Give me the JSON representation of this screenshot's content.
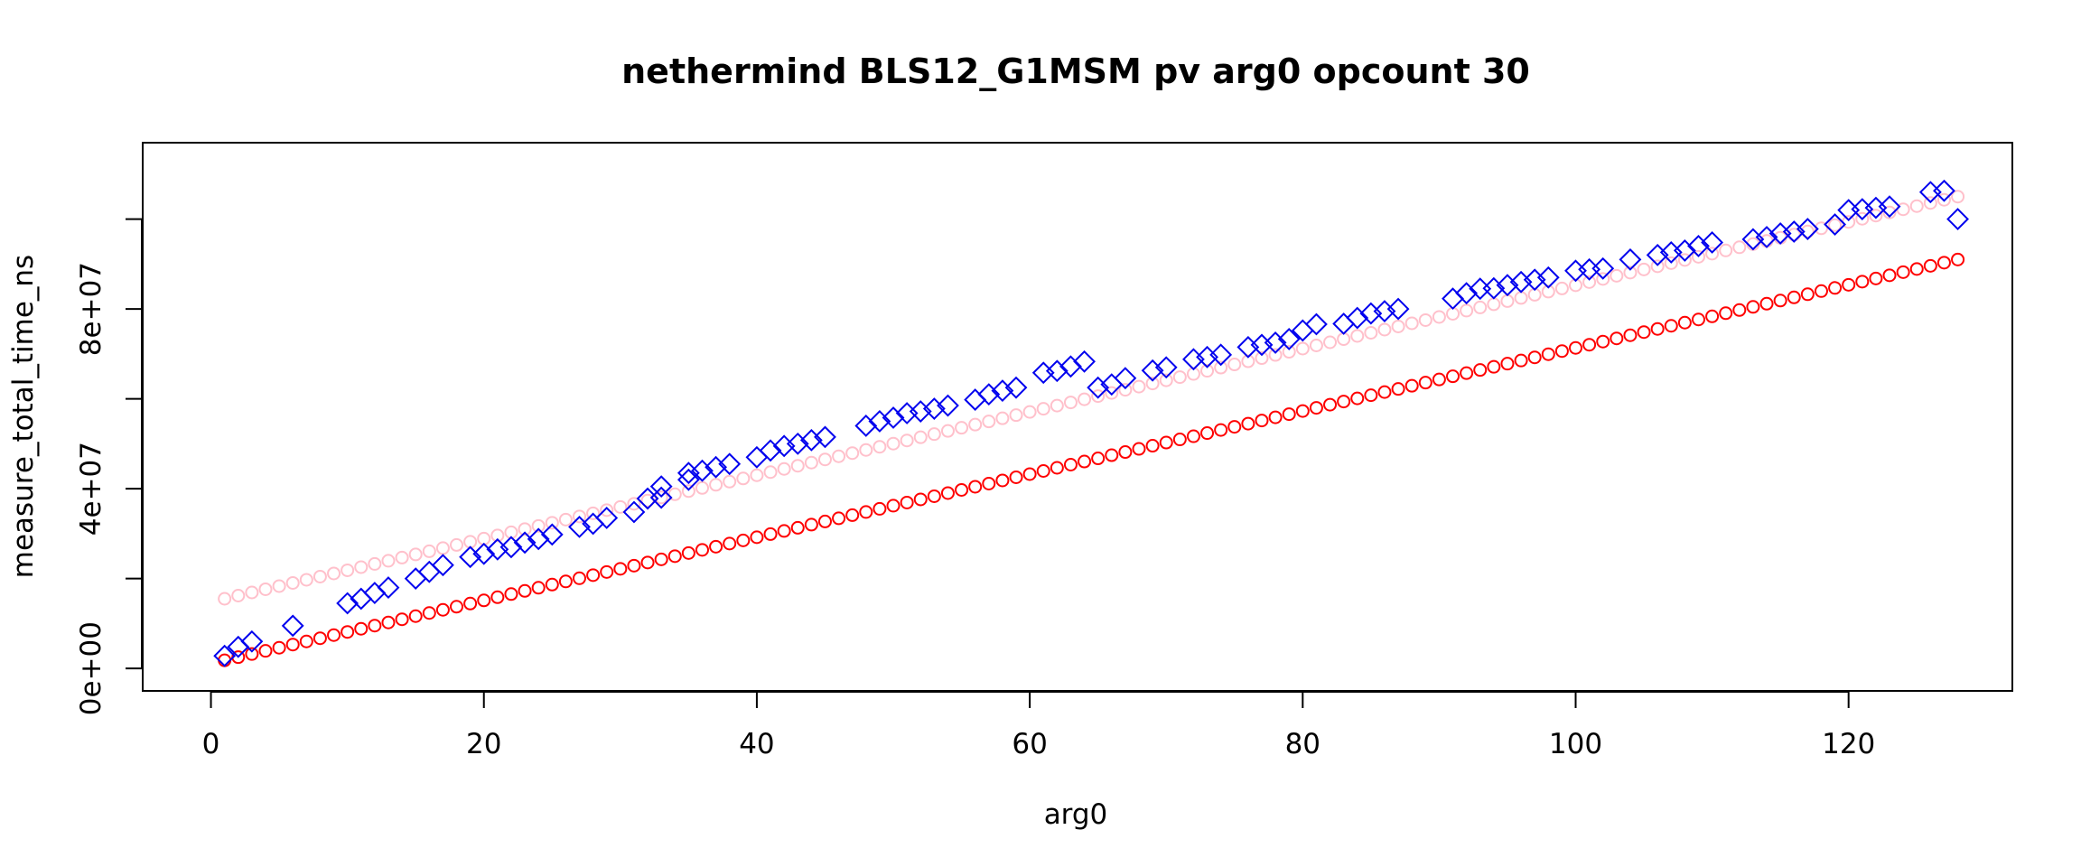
{
  "chart_data": {
    "type": "scatter",
    "title": "nethermind BLS12_G1MSM pv arg0 opcount 30",
    "xlabel": "arg0",
    "ylabel": "measure_total_time_ns",
    "xlim": [
      -5,
      132
    ],
    "ylim": [
      -5000000,
      117000000
    ],
    "x_ticks": [
      0,
      20,
      40,
      60,
      80,
      100,
      120
    ],
    "x_tick_labels": [
      "0",
      "20",
      "40",
      "60",
      "80",
      "100",
      "120"
    ],
    "y_ticks": [
      0,
      40000000,
      80000000
    ],
    "y_tick_labels": [
      "0e+00",
      "4e+07",
      "8e+07"
    ],
    "grid": false,
    "legend": "none",
    "series": [
      {
        "marker": "circle",
        "color": "#ffc0cb",
        "fit": {
          "from": 1,
          "to": 128,
          "step": 1,
          "y_at_from": 15500000,
          "y_at_to": 105000000
        }
      },
      {
        "marker": "circle",
        "color": "#ff0000",
        "fit": {
          "from": 1,
          "to": 128,
          "step": 1,
          "y_at_from": 1800000,
          "y_at_to": 91000000
        }
      },
      {
        "marker": "diamond",
        "color": "#0000ee",
        "points": [
          [
            1,
            2800000
          ],
          [
            2,
            4800000
          ],
          [
            3,
            6000000
          ],
          [
            6,
            9500000
          ],
          [
            10,
            14500000
          ],
          [
            11,
            15500000
          ],
          [
            12,
            16800000
          ],
          [
            13,
            18000000
          ],
          [
            15,
            20000000
          ],
          [
            16,
            21500000
          ],
          [
            17,
            23000000
          ],
          [
            19,
            24800000
          ],
          [
            20,
            25500000
          ],
          [
            21,
            26500000
          ],
          [
            22,
            27000000
          ],
          [
            23,
            28000000
          ],
          [
            24,
            28800000
          ],
          [
            25,
            29800000
          ],
          [
            27,
            31500000
          ],
          [
            28,
            32200000
          ],
          [
            29,
            33500000
          ],
          [
            31,
            34800000
          ],
          [
            32,
            37800000
          ],
          [
            33,
            38000000
          ],
          [
            33,
            40500000
          ],
          [
            35,
            42000000
          ],
          [
            35,
            43500000
          ],
          [
            36,
            44000000
          ],
          [
            37,
            44800000
          ],
          [
            38,
            45500000
          ],
          [
            40,
            47000000
          ],
          [
            41,
            48500000
          ],
          [
            42,
            49500000
          ],
          [
            43,
            50000000
          ],
          [
            44,
            50800000
          ],
          [
            45,
            51500000
          ],
          [
            48,
            54000000
          ],
          [
            49,
            55000000
          ],
          [
            50,
            55800000
          ],
          [
            51,
            56800000
          ],
          [
            52,
            57200000
          ],
          [
            53,
            57800000
          ],
          [
            54,
            58500000
          ],
          [
            56,
            59800000
          ],
          [
            57,
            61000000
          ],
          [
            58,
            61800000
          ],
          [
            59,
            62500000
          ],
          [
            61,
            65800000
          ],
          [
            62,
            66200000
          ],
          [
            63,
            67200000
          ],
          [
            64,
            68300000
          ],
          [
            65,
            62500000
          ],
          [
            66,
            63200000
          ],
          [
            67,
            64600000
          ],
          [
            69,
            66300000
          ],
          [
            70,
            67000000
          ],
          [
            72,
            68800000
          ],
          [
            73,
            69300000
          ],
          [
            74,
            69800000
          ],
          [
            76,
            71500000
          ],
          [
            77,
            72000000
          ],
          [
            78,
            72500000
          ],
          [
            79,
            73300000
          ],
          [
            80,
            75200000
          ],
          [
            81,
            76600000
          ],
          [
            83,
            76700000
          ],
          [
            84,
            78000000
          ],
          [
            85,
            79000000
          ],
          [
            86,
            79500000
          ],
          [
            87,
            80000000
          ],
          [
            91,
            82300000
          ],
          [
            92,
            83500000
          ],
          [
            93,
            84500000
          ],
          [
            94,
            84600000
          ],
          [
            95,
            85300000
          ],
          [
            96,
            86000000
          ],
          [
            97,
            86500000
          ],
          [
            98,
            87000000
          ],
          [
            100,
            88500000
          ],
          [
            101,
            88800000
          ],
          [
            102,
            89000000
          ],
          [
            104,
            91000000
          ],
          [
            106,
            92000000
          ],
          [
            107,
            92600000
          ],
          [
            108,
            93000000
          ],
          [
            109,
            94000000
          ],
          [
            110,
            94800000
          ],
          [
            113,
            95500000
          ],
          [
            114,
            96000000
          ],
          [
            115,
            96800000
          ],
          [
            116,
            97200000
          ],
          [
            117,
            97800000
          ],
          [
            119,
            98800000
          ],
          [
            120,
            102000000
          ],
          [
            121,
            102200000
          ],
          [
            122,
            102500000
          ],
          [
            123,
            102800000
          ],
          [
            126,
            106000000
          ],
          [
            127,
            106300000
          ],
          [
            128,
            100000000
          ]
        ]
      }
    ]
  }
}
